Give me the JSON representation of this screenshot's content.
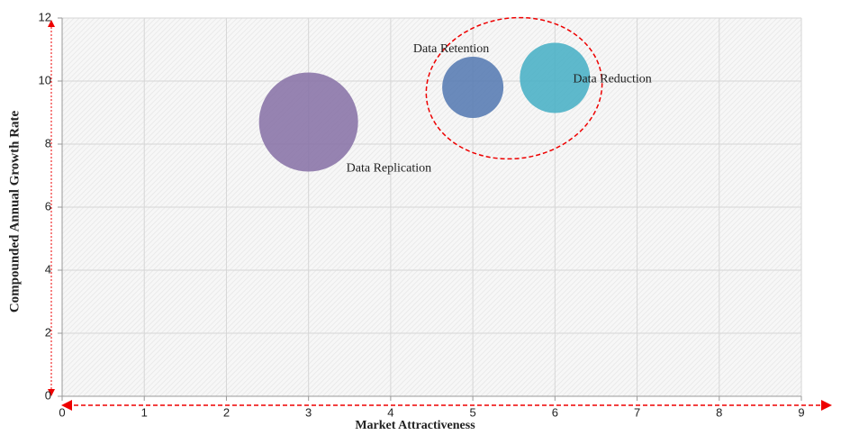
{
  "chart_data": {
    "type": "bubble",
    "xlabel": "Market Attractiveness",
    "ylabel": "Compounded  Annual  Growth Rate",
    "xlim": [
      0,
      9
    ],
    "xticks": [
      0,
      1,
      2,
      3,
      4,
      5,
      6,
      7,
      8,
      9
    ],
    "ylim": [
      0,
      12
    ],
    "yticks": [
      0,
      2,
      4,
      6,
      8,
      10,
      12
    ],
    "grid": true,
    "series": [
      {
        "name": "Data Replication",
        "color": "#8b76a8",
        "x": [
          3
        ],
        "values": [
          8.7
        ],
        "sizes": [
          5.5
        ]
      },
      {
        "name": "Data Retention",
        "color": "#5a7db4",
        "x": [
          5
        ],
        "values": [
          9.8
        ],
        "sizes": [
          3.4
        ]
      },
      {
        "name": "Data Reduction",
        "color": "#4db1c7",
        "x": [
          6
        ],
        "values": [
          10.1
        ],
        "sizes": [
          3.9
        ]
      }
    ]
  }
}
